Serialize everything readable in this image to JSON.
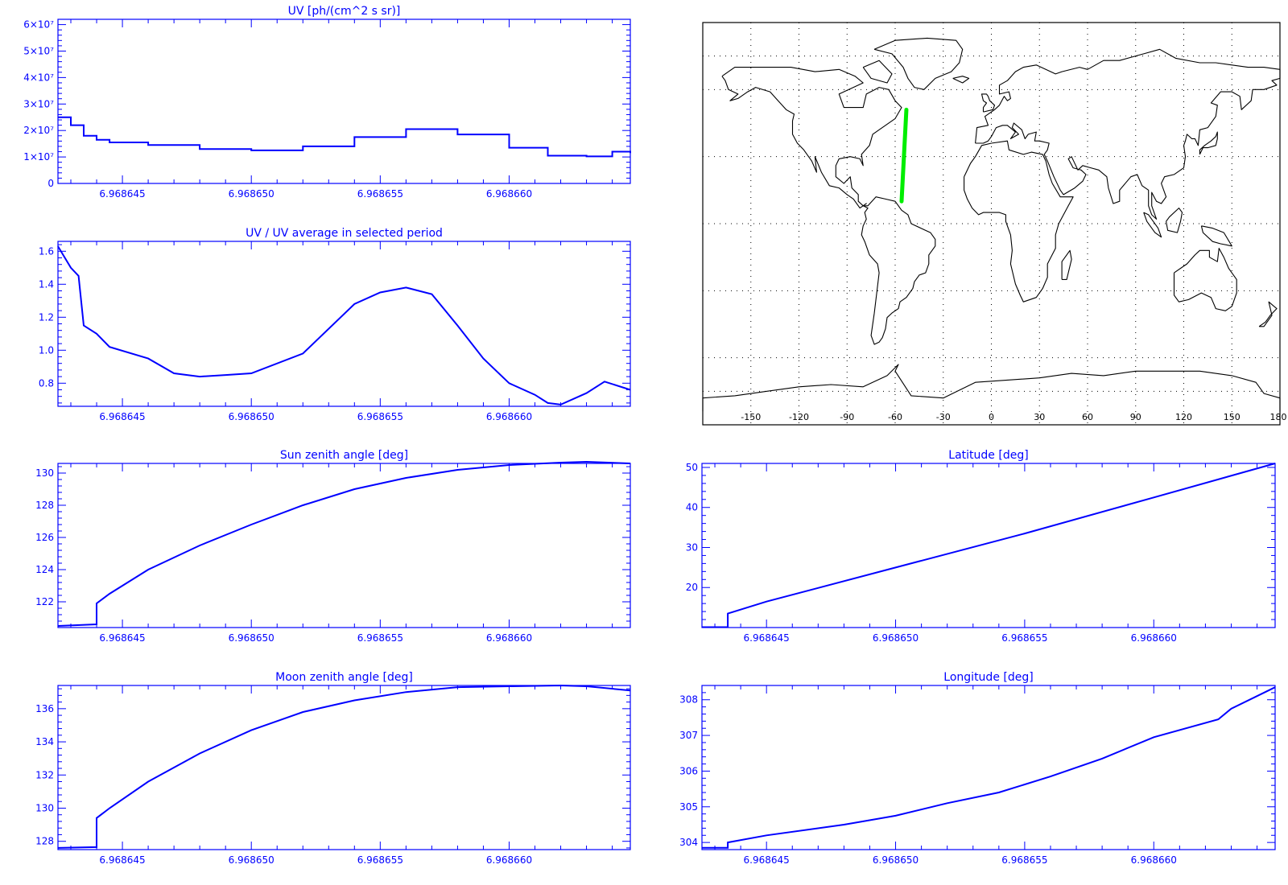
{
  "colors": {
    "axis": "#0000ff",
    "line": "#0000ff",
    "map_outline": "#000000",
    "track": "#00ee00",
    "grid": "#000000"
  },
  "chart_data": [
    {
      "id": "uv",
      "type": "line",
      "title": "UV [ph/(cm^2 s sr)]",
      "xlabel": "",
      "ylabel": "",
      "xlim": [
        6.9686425,
        6.9686647
      ],
      "ylim": [
        0,
        62000000
      ],
      "x_ticks": [
        6.968645,
        6.96865,
        6.968655,
        6.96866
      ],
      "x_tick_labels": [
        "6.968645",
        "6.968650",
        "6.968655",
        "6.968660"
      ],
      "y_ticks": [
        0,
        10000000,
        20000000,
        30000000,
        40000000,
        50000000,
        60000000
      ],
      "y_tick_labels": [
        "0",
        "1×10⁷",
        "2×10⁷",
        "3×10⁷",
        "4×10⁷",
        "5×10⁷",
        "6×10⁷"
      ],
      "series": [
        {
          "step": true,
          "x": [
            6.9686425,
            6.968643,
            6.9686435,
            6.968644,
            6.9686445,
            6.968646,
            6.968648,
            6.96865,
            6.968652,
            6.968654,
            6.968656,
            6.968658,
            6.96866,
            6.9686615,
            6.968663,
            6.968664,
            6.9686647
          ],
          "y": [
            25000000,
            22000000,
            18000000,
            16500000,
            15500000,
            14500000,
            13000000,
            12500000,
            14000000,
            17500000,
            20500000,
            18500000,
            13500000,
            10500000,
            10200000,
            12000000,
            11500000
          ]
        }
      ]
    },
    {
      "id": "uv_ratio",
      "type": "line",
      "title": "UV / UV average in selected period",
      "xlabel": "",
      "ylabel": "",
      "xlim": [
        6.9686425,
        6.9686647
      ],
      "ylim": [
        0.66,
        1.66
      ],
      "x_ticks": [
        6.968645,
        6.96865,
        6.968655,
        6.96866
      ],
      "x_tick_labels": [
        "6.968645",
        "6.968650",
        "6.968655",
        "6.968660"
      ],
      "y_ticks": [
        0.8,
        1.0,
        1.2,
        1.4,
        1.6
      ],
      "y_tick_labels": [
        "0.8",
        "1.0",
        "1.2",
        "1.4",
        "1.6"
      ],
      "series": [
        {
          "step": false,
          "x": [
            6.9686425,
            6.968643,
            6.9686433,
            6.9686435,
            6.968644,
            6.9686445,
            6.968646,
            6.968647,
            6.968648,
            6.968649,
            6.96865,
            6.968652,
            6.968654,
            6.968655,
            6.968656,
            6.968657,
            6.968658,
            6.968659,
            6.96866,
            6.968661,
            6.9686615,
            6.968662,
            6.968663,
            6.9686637,
            6.9686647
          ],
          "y": [
            1.63,
            1.5,
            1.45,
            1.15,
            1.1,
            1.02,
            0.95,
            0.86,
            0.84,
            0.85,
            0.86,
            0.98,
            1.28,
            1.35,
            1.38,
            1.34,
            1.15,
            0.95,
            0.8,
            0.73,
            0.68,
            0.67,
            0.74,
            0.81,
            0.76
          ]
        }
      ]
    },
    {
      "id": "sun_zenith",
      "type": "line",
      "title": "Sun zenith angle [deg]",
      "xlabel": "",
      "ylabel": "",
      "xlim": [
        6.9686425,
        6.9686647
      ],
      "ylim": [
        120.4,
        130.6
      ],
      "x_ticks": [
        6.968645,
        6.96865,
        6.968655,
        6.96866
      ],
      "x_tick_labels": [
        "6.968645",
        "6.968650",
        "6.968655",
        "6.968660"
      ],
      "y_ticks": [
        122,
        124,
        126,
        128,
        130
      ],
      "y_tick_labels": [
        "122",
        "124",
        "126",
        "128",
        "130"
      ],
      "series": [
        {
          "step": false,
          "x": [
            6.9686425,
            6.968644,
            6.968644,
            6.9686445,
            6.968646,
            6.968648,
            6.96865,
            6.968652,
            6.968654,
            6.968656,
            6.968658,
            6.96866,
            6.968662,
            6.968663,
            6.9686647
          ],
          "y": [
            120.5,
            120.6,
            121.9,
            122.5,
            124.0,
            125.5,
            126.8,
            128.0,
            129.0,
            129.7,
            130.2,
            130.5,
            130.65,
            130.7,
            130.6
          ]
        }
      ]
    },
    {
      "id": "latitude",
      "type": "line",
      "title": "Latitude [deg]",
      "xlabel": "",
      "ylabel": "",
      "xlim": [
        6.9686425,
        6.9686647
      ],
      "ylim": [
        10,
        51
      ],
      "x_ticks": [
        6.968645,
        6.96865,
        6.968655,
        6.96866
      ],
      "x_tick_labels": [
        "6.968645",
        "6.968650",
        "6.968655",
        "6.968660"
      ],
      "y_ticks": [
        20,
        30,
        40,
        50
      ],
      "y_tick_labels": [
        "20",
        "30",
        "40",
        "50"
      ],
      "series": [
        {
          "step": false,
          "x": [
            6.9686425,
            6.9686435,
            6.9686435,
            6.968645,
            6.96865,
            6.968655,
            6.96866,
            6.9686647
          ],
          "y": [
            10.1,
            10.1,
            13.5,
            16.5,
            25.0,
            33.5,
            42.5,
            51.0
          ]
        }
      ]
    },
    {
      "id": "moon_zenith",
      "type": "line",
      "title": "Moon zenith angle [deg]",
      "xlabel": "",
      "ylabel": "",
      "xlim": [
        6.9686425,
        6.9686647
      ],
      "ylim": [
        127.5,
        137.4
      ],
      "x_ticks": [
        6.968645,
        6.96865,
        6.968655,
        6.96866
      ],
      "x_tick_labels": [
        "6.968645",
        "6.968650",
        "6.968655",
        "6.968660"
      ],
      "y_ticks": [
        128,
        130,
        132,
        134,
        136
      ],
      "y_tick_labels": [
        "128",
        "130",
        "132",
        "134",
        "136"
      ],
      "series": [
        {
          "step": false,
          "x": [
            6.9686425,
            6.968644,
            6.968644,
            6.9686445,
            6.968646,
            6.968648,
            6.96865,
            6.968652,
            6.968654,
            6.968656,
            6.968658,
            6.96866,
            6.968662,
            6.968663,
            6.9686647
          ],
          "y": [
            127.6,
            127.65,
            129.4,
            130.0,
            131.6,
            133.3,
            134.7,
            135.8,
            136.5,
            137.0,
            137.3,
            137.35,
            137.4,
            137.35,
            137.1
          ]
        }
      ]
    },
    {
      "id": "longitude",
      "type": "line",
      "title": "Longitude [deg]",
      "xlabel": "",
      "ylabel": "",
      "xlim": [
        6.9686425,
        6.9686647
      ],
      "ylim": [
        303.8,
        308.4
      ],
      "x_ticks": [
        6.968645,
        6.96865,
        6.968655,
        6.96866
      ],
      "x_tick_labels": [
        "6.968645",
        "6.968650",
        "6.968655",
        "6.968660"
      ],
      "y_ticks": [
        304,
        305,
        306,
        307,
        308
      ],
      "y_tick_labels": [
        "304",
        "305",
        "306",
        "307",
        "308"
      ],
      "series": [
        {
          "step": false,
          "x": [
            6.9686425,
            6.9686435,
            6.9686435,
            6.968645,
            6.968648,
            6.96865,
            6.968652,
            6.968654,
            6.968656,
            6.968658,
            6.96866,
            6.9686625,
            6.968663,
            6.9686647
          ],
          "y": [
            303.85,
            303.85,
            304.0,
            304.2,
            304.5,
            304.75,
            305.1,
            305.4,
            305.85,
            306.35,
            306.95,
            307.45,
            307.75,
            308.35
          ]
        }
      ]
    },
    {
      "id": "world_map",
      "type": "map",
      "title": "",
      "x_tick_labels": [
        "-150",
        "-120",
        "-90",
        "-60",
        "-30",
        "0",
        "30",
        "60",
        "90",
        "120",
        "150",
        "180"
      ],
      "x_ticks_deg": [
        -150,
        -120,
        -90,
        -60,
        -30,
        0,
        30,
        60,
        90,
        120,
        150,
        180
      ],
      "xlim": [
        -180,
        180
      ],
      "ylim": [
        -90,
        90
      ],
      "grid": true,
      "track": {
        "lon": [
          -53,
          -56
        ],
        "lat": [
          51,
          10
        ]
      }
    }
  ]
}
